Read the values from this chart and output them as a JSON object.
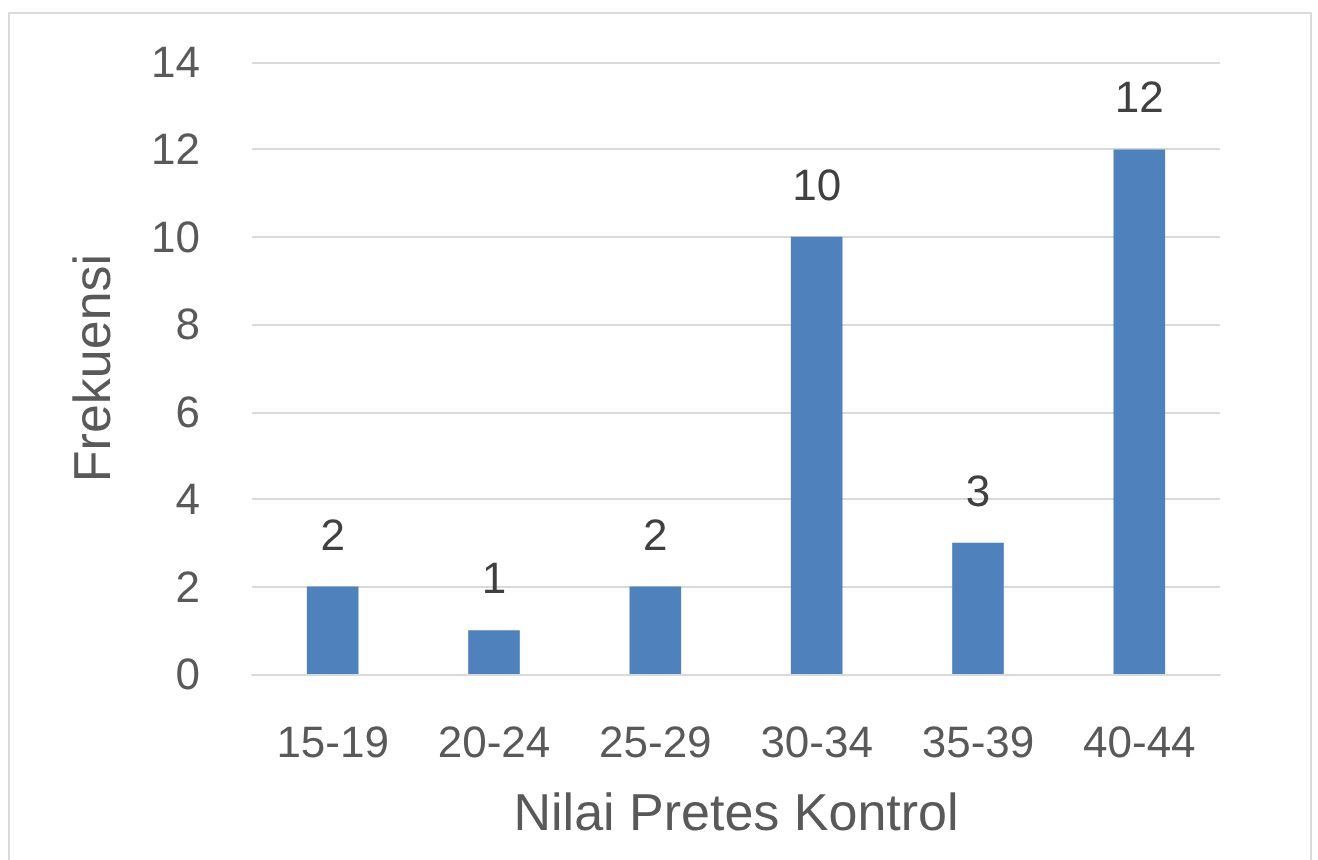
{
  "chart_data": {
    "type": "bar",
    "xlabel": "Nilai Pretes Kontrol",
    "ylabel": "Frekuensi",
    "categories": [
      "15-19",
      "20-24",
      "25-29",
      "30-34",
      "35-39",
      "40-44"
    ],
    "values": [
      2,
      1,
      2,
      10,
      3,
      12
    ],
    "color": "#4f81bd",
    "ylim": [
      0,
      14
    ],
    "yticks": [
      0,
      2,
      4,
      6,
      8,
      10,
      12,
      14
    ],
    "grid": "y",
    "data_labels": true
  }
}
